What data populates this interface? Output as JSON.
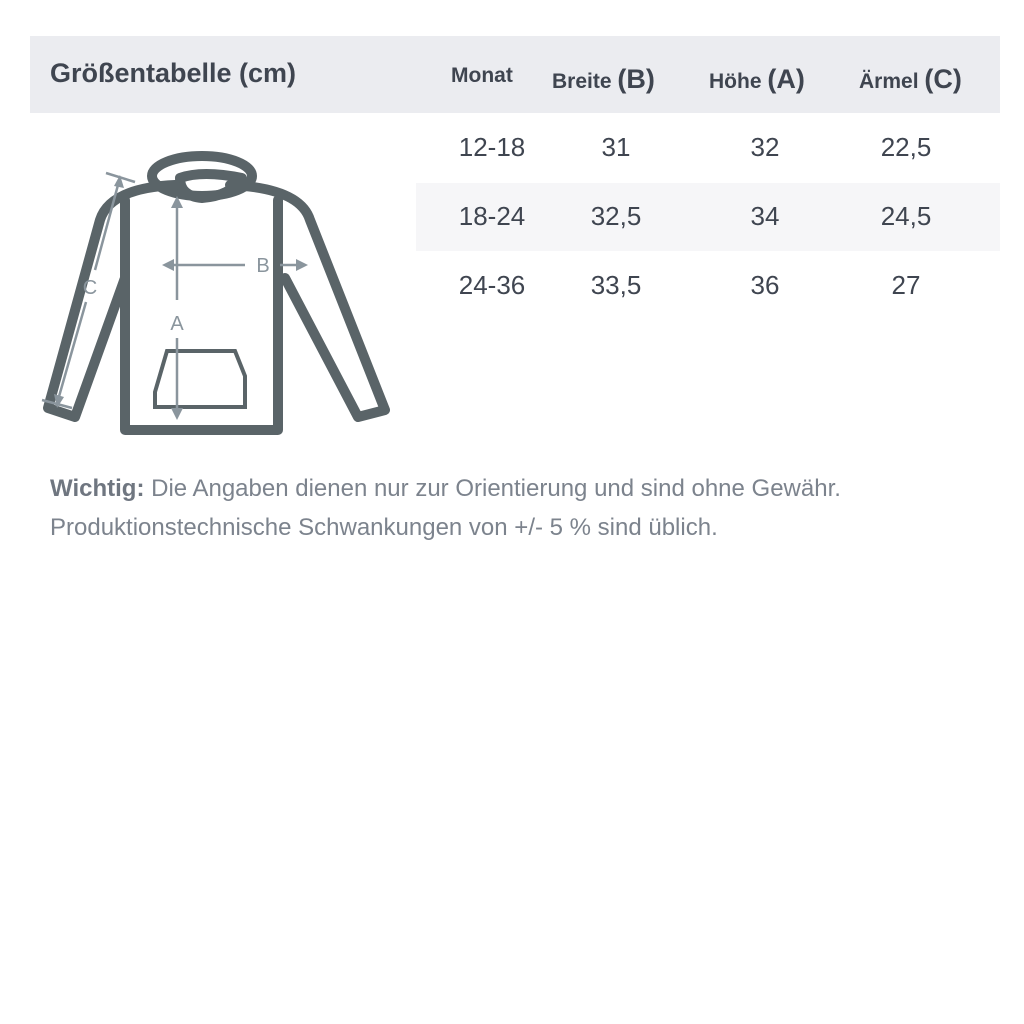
{
  "title": "Größentabelle (cm)",
  "columns": [
    {
      "label": "Monat",
      "symbol": ""
    },
    {
      "label": "Breite",
      "symbol": "(B)"
    },
    {
      "label": "Höhe",
      "symbol": "(A)"
    },
    {
      "label": "Ärmel",
      "symbol": "(C)"
    }
  ],
  "rows": [
    [
      "12-18",
      "31",
      "32",
      "22,5"
    ],
    [
      "18-24",
      "32,5",
      "34",
      "24,5"
    ],
    [
      "24-36",
      "33,5",
      "36",
      "27"
    ]
  ],
  "diagram": {
    "labels": {
      "a": "A",
      "b": "B",
      "c": "C"
    },
    "outline_color": "#5a6468",
    "arrow_color": "#8a959d"
  },
  "note": {
    "bold": "Wichtig:",
    "line1": " Die Angaben dienen nur zur Orientierung und sind ohne Gewähr.",
    "line2": "Produktionstechnische Schwankungen von +/- 5 % sind üblich."
  }
}
